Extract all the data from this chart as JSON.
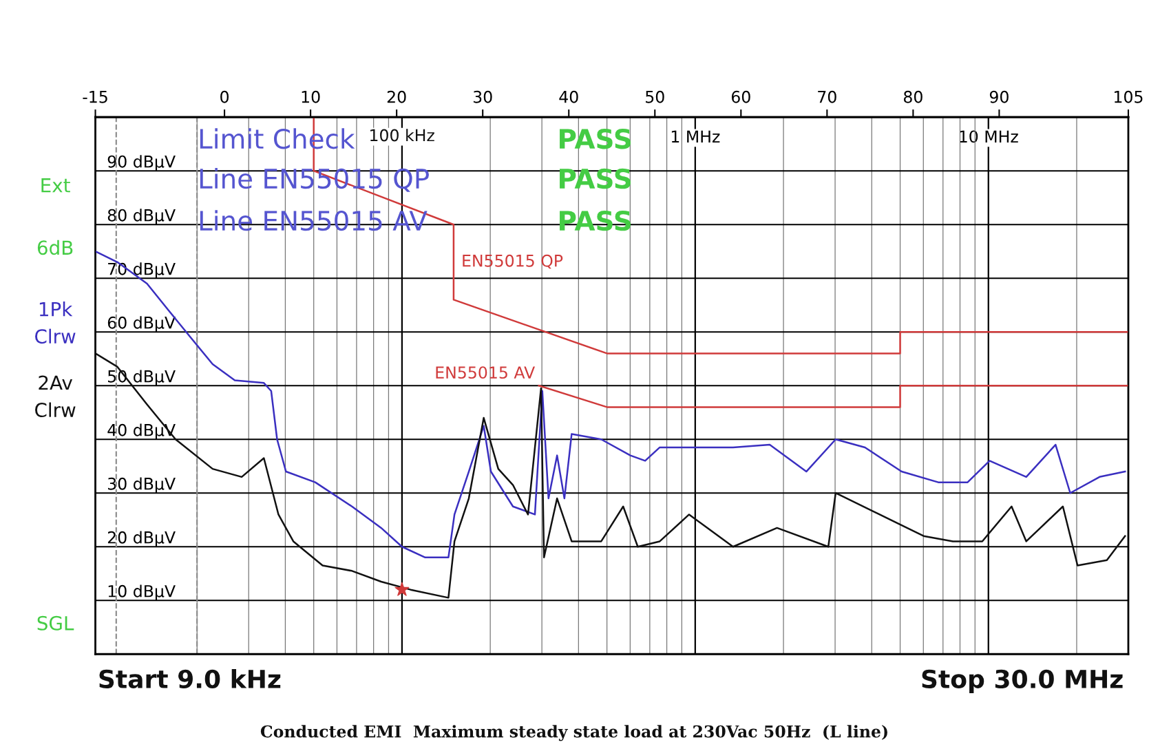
{
  "chart_data": {
    "type": "line",
    "log": "x",
    "xlim": [
      0.009,
      30
    ],
    "xticks": [
      {
        "value": 0.1,
        "label": null
      },
      {
        "value": 1,
        "label": "1 MHz"
      },
      {
        "value": 10,
        "label": "10 MHz"
      }
    ],
    "ylim": [
      0,
      100
    ],
    "yticks": [
      {
        "value": 10,
        "label": "10 dBµV"
      },
      {
        "value": 20,
        "label": "20 dBµV"
      },
      {
        "value": 30,
        "label": "30 dBµV"
      },
      {
        "value": 40,
        "label": "40 dBµV"
      },
      {
        "value": 50,
        "label": "50 dBµV"
      },
      {
        "value": 60,
        "label": "60 dBµV"
      },
      {
        "value": 70,
        "label": "70 dBµV"
      },
      {
        "value": 80,
        "label": "80 dBµV"
      },
      {
        "value": 90,
        "label": "90 dBµV"
      }
    ],
    "x2lim": [
      -15,
      105
    ],
    "x2ticks": [
      -15,
      0,
      10,
      20,
      30,
      40,
      50,
      60,
      70,
      80,
      90,
      105
    ],
    "grid": true,
    "series": [
      {
        "name": "EN55015 QP",
        "color": "#d03a3a",
        "x": [
          0.05,
          0.05,
          0.15,
          0.15,
          0.5,
          5,
          5,
          30
        ],
        "values": [
          100,
          90,
          80,
          66,
          56,
          56,
          60,
          60
        ]
      },
      {
        "name": "EN55015 AV",
        "color": "#d03a3a",
        "x": [
          0.293,
          0.5,
          5,
          5,
          30
        ],
        "values": [
          50,
          46,
          46,
          50,
          50
        ]
      },
      {
        "name": "1Pk Clrw",
        "color": "#3a2fc0",
        "x": [
          0.009,
          0.0107,
          0.0135,
          0.016,
          0.019,
          0.0226,
          0.0269,
          0.0338,
          0.0358,
          0.0375,
          0.0402,
          0.0506,
          0.0675,
          0.0849,
          0.1,
          0.12,
          0.144,
          0.151,
          0.169,
          0.19,
          0.201,
          0.239,
          0.284,
          0.301,
          0.316,
          0.338,
          0.358,
          0.379,
          0.478,
          0.601,
          0.675,
          0.757,
          1.009,
          1.346,
          1.795,
          2.393,
          3.013,
          3.793,
          5.058,
          6.745,
          8.492,
          10.093,
          13.459,
          16.943,
          19.011,
          23.933,
          29.242
        ],
        "values": [
          75,
          73,
          69,
          64,
          59,
          54,
          51,
          50.5,
          49,
          40,
          34,
          32,
          27.5,
          23.5,
          20,
          18,
          18,
          26,
          34,
          42.5,
          34,
          27.5,
          26,
          49,
          29,
          37,
          29,
          41,
          40,
          37,
          36,
          38.5,
          38.5,
          38.5,
          39,
          34,
          40,
          38.5,
          34,
          32,
          32,
          36,
          33,
          39,
          30,
          33,
          34
        ]
      },
      {
        "name": "2Av Clrw",
        "color": "#111111",
        "x": [
          0.009,
          0.0107,
          0.0135,
          0.0169,
          0.0226,
          0.0284,
          0.0338,
          0.0379,
          0.0426,
          0.0536,
          0.0675,
          0.0849,
          0.107,
          0.144,
          0.151,
          0.169,
          0.19,
          0.213,
          0.239,
          0.269,
          0.298,
          0.305,
          0.338,
          0.379,
          0.478,
          0.568,
          0.637,
          0.757,
          0.953,
          1.346,
          1.901,
          2.844,
          3.013,
          4.256,
          6.012,
          7.568,
          9.528,
          11.995,
          13.459,
          17.947,
          20.137,
          25.351,
          29.242
        ],
        "values": [
          56,
          53.5,
          46.5,
          40,
          34.5,
          33,
          36.5,
          26,
          21,
          16.5,
          15.5,
          13.5,
          12,
          10.5,
          21,
          29,
          44,
          34.5,
          31.5,
          26,
          49.5,
          18,
          29,
          21,
          21,
          27.5,
          20,
          21,
          26,
          20,
          23.5,
          20,
          30,
          26,
          22,
          21,
          21,
          27.5,
          21,
          27.5,
          16.5,
          17.5,
          22
        ]
      },
      {
        "type": "scatter",
        "color": "#d03a3a",
        "marker": "star",
        "x": [
          0.1
        ],
        "values": [
          12
        ]
      }
    ],
    "ref_lines": [
      {
        "axis": "x",
        "value": 0.0106,
        "color": "#888888",
        "line_style": "dashed"
      },
      {
        "axis": "x",
        "value": 0.02,
        "color": "#888888",
        "line_style": "dashed"
      }
    ],
    "annotations": [
      "Limit Check",
      "PASS",
      "Line EN55015 QP",
      "PASS",
      "Line EN55015 AV",
      "PASS",
      "Ext",
      "6dB",
      "SGL",
      "Start 9.0 kHz",
      "Stop 30.0 MHz",
      "Conducted EMI  Maximum steady state load at 230Vac 50Hz  (L line)",
      "100 kHz"
    ]
  }
}
